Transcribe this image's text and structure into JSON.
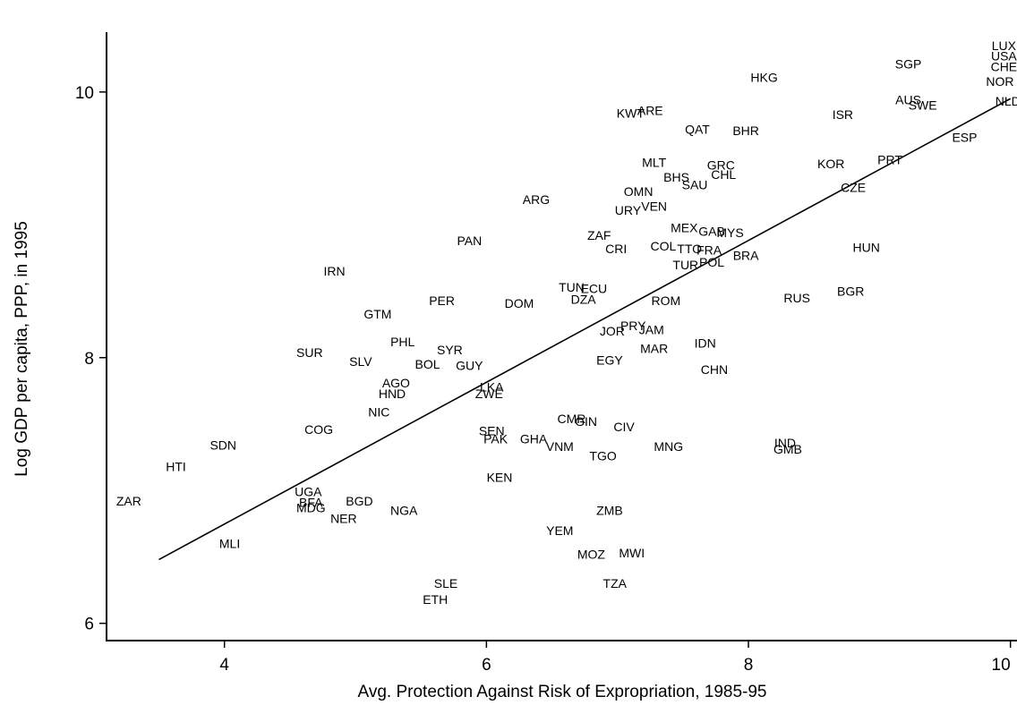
{
  "chart_data": {
    "type": "scatter",
    "title": "",
    "xlabel": "Avg. Protection Against Risk of Expropriation, 1985-95",
    "ylabel": "Log GDP per capita, PPP, in 1995",
    "xlim": [
      3.1,
      10.05
    ],
    "ylim": [
      5.87,
      10.45
    ],
    "xticks": [
      4,
      6,
      8,
      10
    ],
    "yticks": [
      6,
      8,
      10
    ],
    "xtick_labels": [
      "4",
      "6",
      "8",
      "10"
    ],
    "ytick_labels": [
      "6",
      "8",
      "10"
    ],
    "grid": false,
    "legend": "none",
    "marker": "country code text",
    "fit_line": {
      "x": [
        3.5,
        10.0
      ],
      "y": [
        6.48,
        9.95
      ]
    },
    "points": [
      {
        "label": "LUX",
        "x": 9.95,
        "y": 10.35
      },
      {
        "label": "USA",
        "x": 9.95,
        "y": 10.27
      },
      {
        "label": "CHE",
        "x": 9.95,
        "y": 10.19
      },
      {
        "label": "NOR",
        "x": 9.92,
        "y": 10.08
      },
      {
        "label": "NLD",
        "x": 9.98,
        "y": 9.93
      },
      {
        "label": "SGP",
        "x": 9.22,
        "y": 10.21
      },
      {
        "label": "AUS",
        "x": 9.22,
        "y": 9.94
      },
      {
        "label": "SWE",
        "x": 9.33,
        "y": 9.9
      },
      {
        "label": "ESP",
        "x": 9.65,
        "y": 9.66
      },
      {
        "label": "HKG",
        "x": 8.12,
        "y": 10.11
      },
      {
        "label": "ISR",
        "x": 8.72,
        "y": 9.83
      },
      {
        "label": "KWT",
        "x": 7.1,
        "y": 9.84
      },
      {
        "label": "ARE",
        "x": 7.25,
        "y": 9.86
      },
      {
        "label": "QAT",
        "x": 7.61,
        "y": 9.72
      },
      {
        "label": "BHR",
        "x": 7.98,
        "y": 9.71
      },
      {
        "label": "PRT",
        "x": 9.08,
        "y": 9.49
      },
      {
        "label": "KOR",
        "x": 8.63,
        "y": 9.46
      },
      {
        "label": "CZE",
        "x": 8.8,
        "y": 9.28
      },
      {
        "label": "MLT",
        "x": 7.28,
        "y": 9.47
      },
      {
        "label": "GRC",
        "x": 7.79,
        "y": 9.45
      },
      {
        "label": "CHL",
        "x": 7.81,
        "y": 9.38
      },
      {
        "label": "BHS",
        "x": 7.45,
        "y": 9.36
      },
      {
        "label": "SAU",
        "x": 7.59,
        "y": 9.3
      },
      {
        "label": "ARG",
        "x": 6.38,
        "y": 9.19
      },
      {
        "label": "OMN",
        "x": 7.16,
        "y": 9.25
      },
      {
        "label": "URY",
        "x": 7.08,
        "y": 9.11
      },
      {
        "label": "VEN",
        "x": 7.28,
        "y": 9.14
      },
      {
        "label": "HUN",
        "x": 8.9,
        "y": 8.83
      },
      {
        "label": "MEX",
        "x": 7.51,
        "y": 8.98
      },
      {
        "label": "GAB",
        "x": 7.72,
        "y": 8.95
      },
      {
        "label": "MYS",
        "x": 7.86,
        "y": 8.94
      },
      {
        "label": "PAN",
        "x": 5.87,
        "y": 8.88
      },
      {
        "label": "ZAF",
        "x": 6.86,
        "y": 8.92
      },
      {
        "label": "CRI",
        "x": 6.99,
        "y": 8.82
      },
      {
        "label": "COL",
        "x": 7.35,
        "y": 8.84
      },
      {
        "label": "TTO",
        "x": 7.55,
        "y": 8.82
      },
      {
        "label": "FRA",
        "x": 7.7,
        "y": 8.81
      },
      {
        "label": "BRA",
        "x": 7.98,
        "y": 8.77
      },
      {
        "label": "TUR",
        "x": 7.52,
        "y": 8.7
      },
      {
        "label": "POL",
        "x": 7.72,
        "y": 8.72
      },
      {
        "label": "IRN",
        "x": 4.84,
        "y": 8.65
      },
      {
        "label": "PER",
        "x": 5.66,
        "y": 8.43
      },
      {
        "label": "DOM",
        "x": 6.25,
        "y": 8.41
      },
      {
        "label": "TUN",
        "x": 6.65,
        "y": 8.53
      },
      {
        "label": "ECU",
        "x": 6.82,
        "y": 8.52
      },
      {
        "label": "DZA",
        "x": 6.74,
        "y": 8.44
      },
      {
        "label": "ROM",
        "x": 7.37,
        "y": 8.43
      },
      {
        "label": "RUS",
        "x": 8.37,
        "y": 8.45
      },
      {
        "label": "BGR",
        "x": 8.78,
        "y": 8.5
      },
      {
        "label": "GTM",
        "x": 5.17,
        "y": 8.33
      },
      {
        "label": "JOR",
        "x": 6.96,
        "y": 8.2
      },
      {
        "label": "PRY",
        "x": 7.12,
        "y": 8.24
      },
      {
        "label": "JAM",
        "x": 7.26,
        "y": 8.21
      },
      {
        "label": "PHL",
        "x": 5.36,
        "y": 8.12
      },
      {
        "label": "SYR",
        "x": 5.72,
        "y": 8.06
      },
      {
        "label": "MAR",
        "x": 7.28,
        "y": 8.07
      },
      {
        "label": "IDN",
        "x": 7.67,
        "y": 8.11
      },
      {
        "label": "SUR",
        "x": 4.65,
        "y": 8.04
      },
      {
        "label": "SLV",
        "x": 5.04,
        "y": 7.97
      },
      {
        "label": "BOL",
        "x": 5.55,
        "y": 7.95
      },
      {
        "label": "GUY",
        "x": 5.87,
        "y": 7.94
      },
      {
        "label": "EGY",
        "x": 6.94,
        "y": 7.98
      },
      {
        "label": "CHN",
        "x": 7.74,
        "y": 7.91
      },
      {
        "label": "AGO",
        "x": 5.31,
        "y": 7.81
      },
      {
        "label": "HND",
        "x": 5.28,
        "y": 7.73
      },
      {
        "label": "LKA",
        "x": 6.04,
        "y": 7.78
      },
      {
        "label": "ZWE",
        "x": 6.02,
        "y": 7.73
      },
      {
        "label": "NIC",
        "x": 5.18,
        "y": 7.59
      },
      {
        "label": "COG",
        "x": 4.72,
        "y": 7.46
      },
      {
        "label": "CMR",
        "x": 6.65,
        "y": 7.54
      },
      {
        "label": "GIN",
        "x": 6.76,
        "y": 7.52
      },
      {
        "label": "CIV",
        "x": 7.05,
        "y": 7.48
      },
      {
        "label": "SEN",
        "x": 6.04,
        "y": 7.45
      },
      {
        "label": "PAK",
        "x": 6.07,
        "y": 7.39
      },
      {
        "label": "GHA",
        "x": 6.36,
        "y": 7.39
      },
      {
        "label": "VNM",
        "x": 6.56,
        "y": 7.33
      },
      {
        "label": "TGO",
        "x": 6.89,
        "y": 7.26
      },
      {
        "label": "MNG",
        "x": 7.39,
        "y": 7.33
      },
      {
        "label": "IND",
        "x": 8.28,
        "y": 7.36
      },
      {
        "label": "GMB",
        "x": 8.3,
        "y": 7.31
      },
      {
        "label": "SDN",
        "x": 3.99,
        "y": 7.34
      },
      {
        "label": "HTI",
        "x": 3.63,
        "y": 7.18
      },
      {
        "label": "KEN",
        "x": 6.1,
        "y": 7.1
      },
      {
        "label": "UGA",
        "x": 4.64,
        "y": 6.99
      },
      {
        "label": "BFA",
        "x": 4.66,
        "y": 6.91
      },
      {
        "label": "MDG",
        "x": 4.66,
        "y": 6.87
      },
      {
        "label": "ZAR",
        "x": 3.27,
        "y": 6.92
      },
      {
        "label": "BGD",
        "x": 5.03,
        "y": 6.92
      },
      {
        "label": "NER",
        "x": 4.91,
        "y": 6.79
      },
      {
        "label": "NGA",
        "x": 5.37,
        "y": 6.85
      },
      {
        "label": "ZMB",
        "x": 6.94,
        "y": 6.85
      },
      {
        "label": "YEM",
        "x": 6.56,
        "y": 6.7
      },
      {
        "label": "MLI",
        "x": 4.04,
        "y": 6.6
      },
      {
        "label": "MOZ",
        "x": 6.8,
        "y": 6.52
      },
      {
        "label": "MWI",
        "x": 7.11,
        "y": 6.53
      },
      {
        "label": "SLE",
        "x": 5.69,
        "y": 6.3
      },
      {
        "label": "ETH",
        "x": 5.61,
        "y": 6.18
      },
      {
        "label": "TZA",
        "x": 6.98,
        "y": 6.3
      }
    ]
  }
}
